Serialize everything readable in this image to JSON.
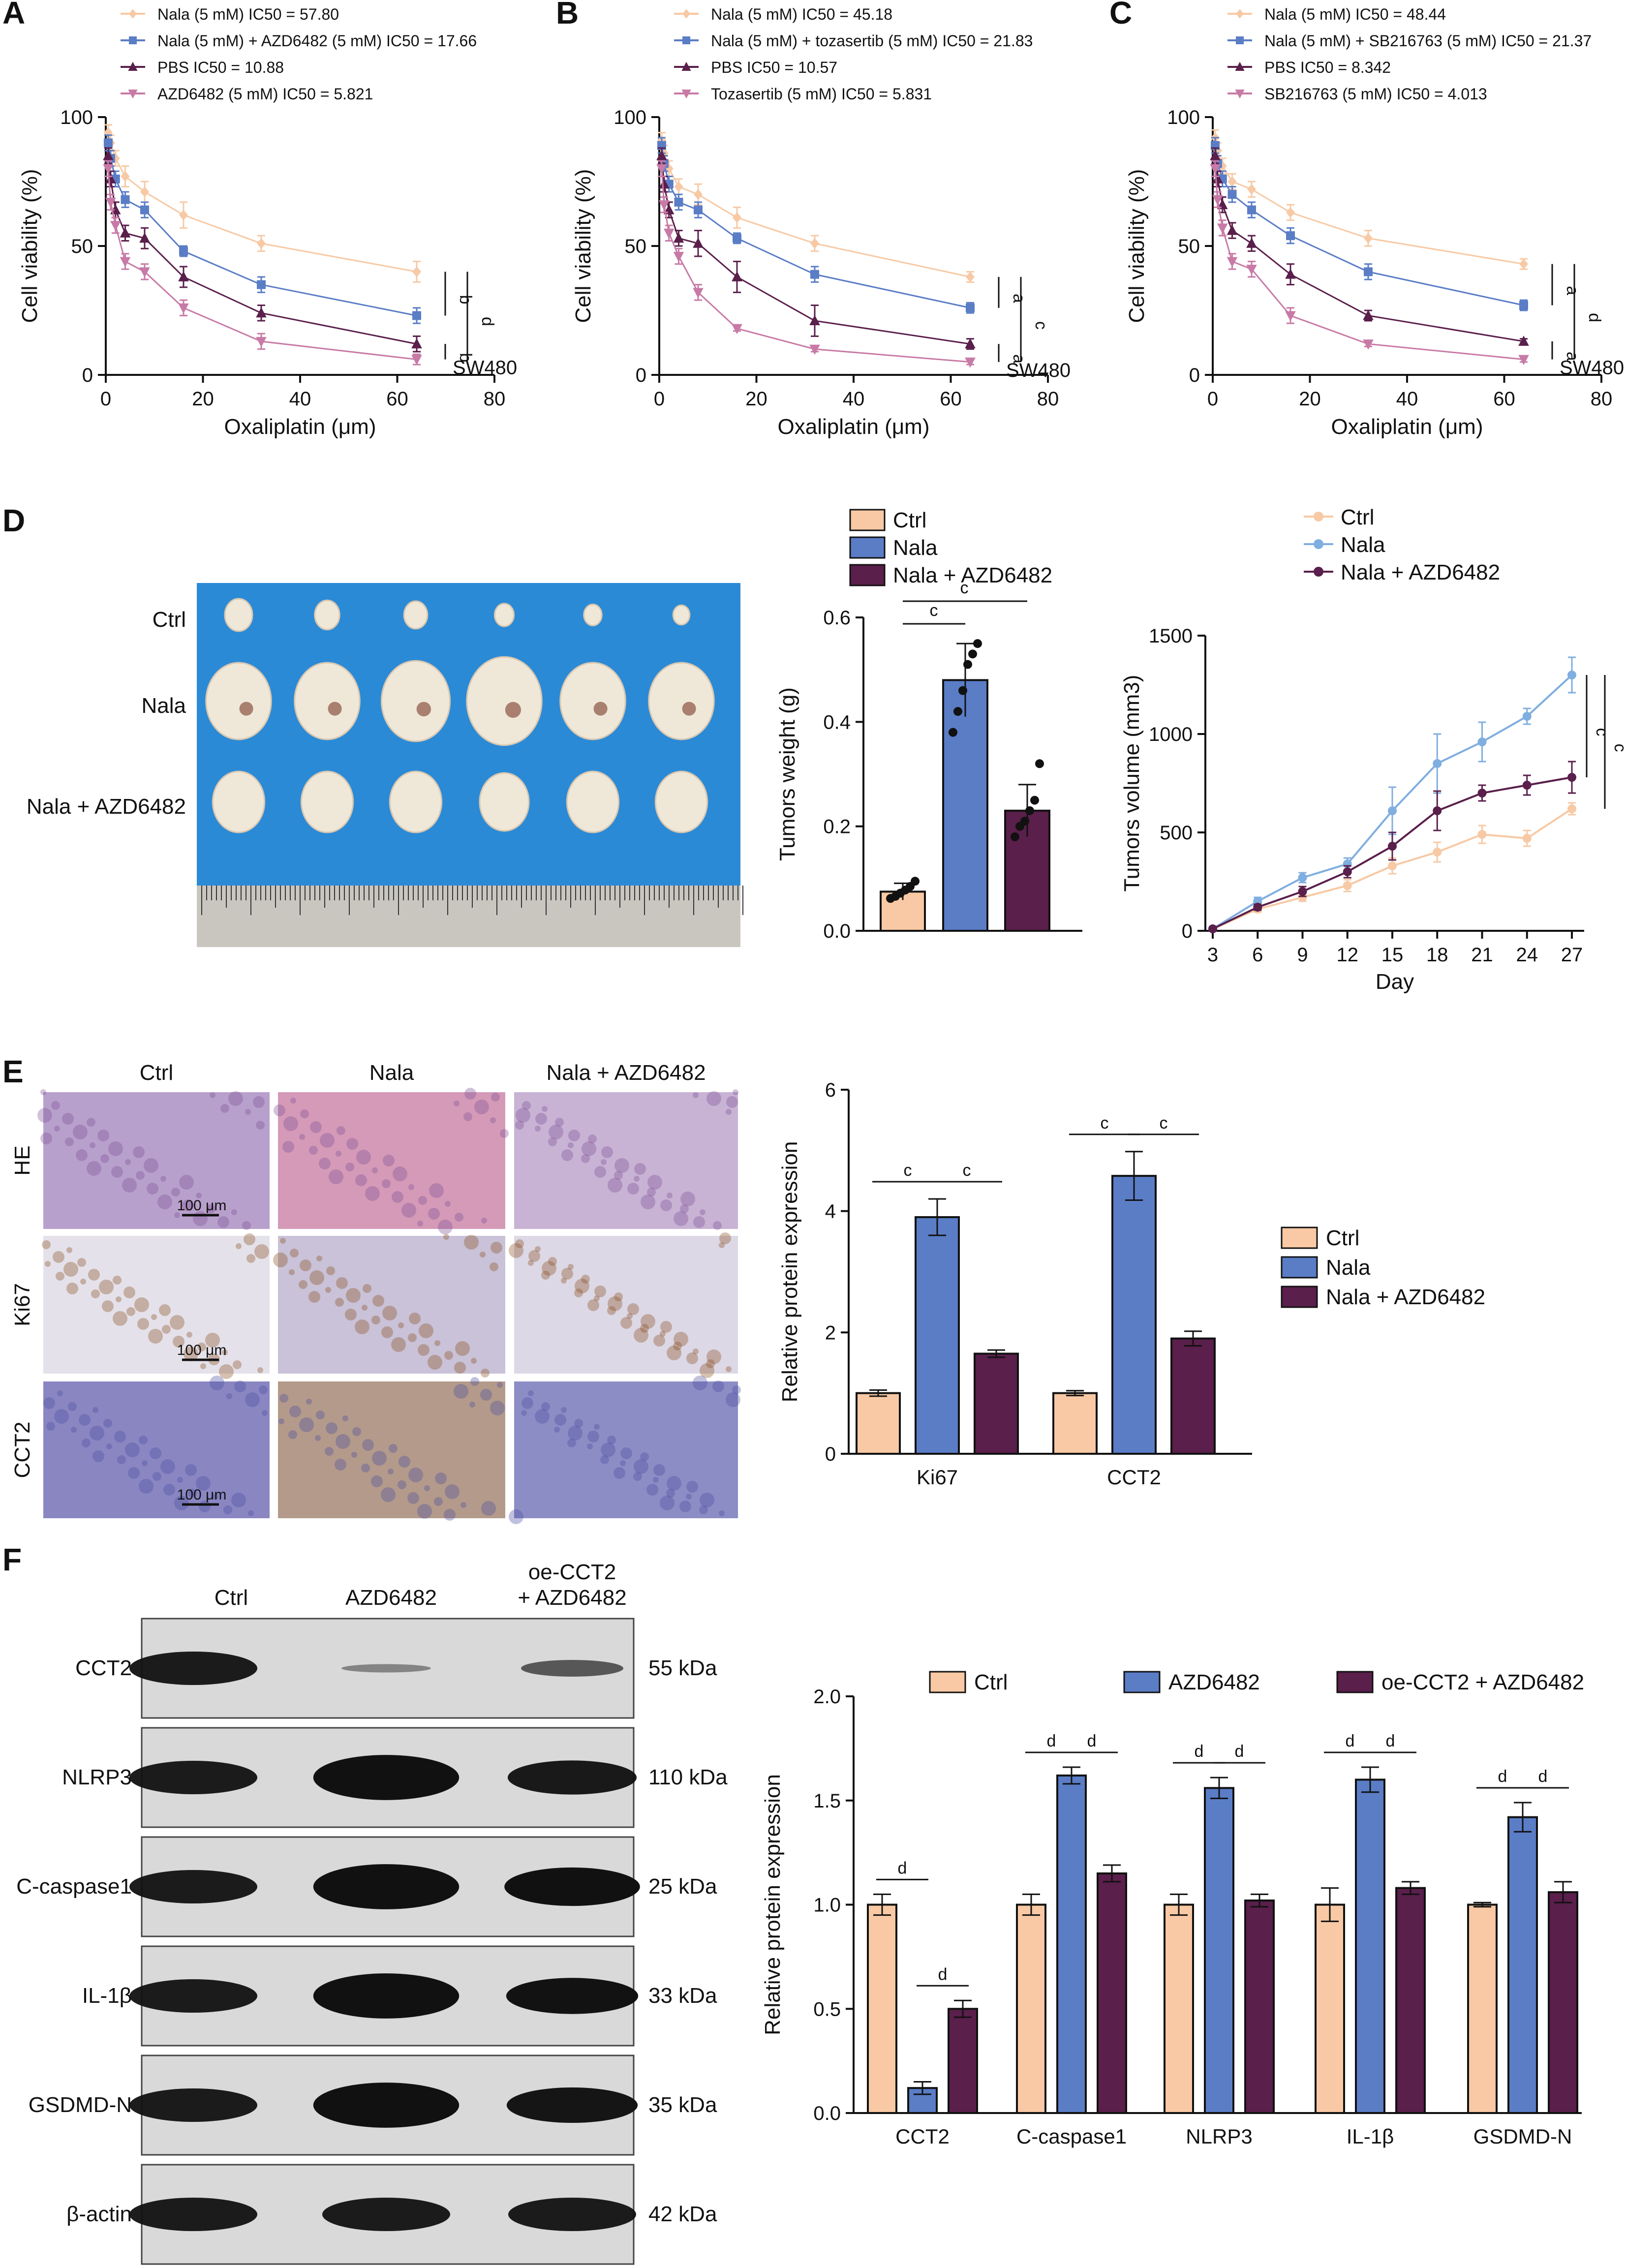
{
  "colors": {
    "orange": "#f3a673",
    "light_orange": "#f7c9a4",
    "ctrl_fill": "#f8c9a4",
    "blue": "#4b77c4",
    "nala_fill": "#5a7dc6",
    "light_blue": "#7faee0",
    "purple": "#5a1f4b",
    "pink": "#c87aa6",
    "tissue_blue": "#2b8ad6"
  },
  "panels": {
    "A": {
      "letter": "A",
      "cell_line": "SW480"
    },
    "B": {
      "letter": "B",
      "cell_line": "SW480"
    },
    "C": {
      "letter": "C",
      "cell_line": "SW480"
    },
    "D": {
      "letter": "D",
      "photo_labels": [
        "Ctrl",
        "Nala",
        "Nala + AZD6482"
      ]
    },
    "E": {
      "letter": "E",
      "columns": [
        "Ctrl",
        "Nala",
        "Nala + AZD6482"
      ],
      "rows": [
        "HE",
        "Ki67",
        "CCT2"
      ],
      "scale_bar": "100 μm"
    },
    "F": {
      "letter": "F",
      "columns": [
        "Ctrl",
        "AZD6482",
        "oe-CCT2",
        "+ AZD6482"
      ],
      "blots": [
        {
          "name": "CCT2",
          "size": "55 kDa",
          "intensity": [
            1.0,
            0.12,
            0.5
          ]
        },
        {
          "name": "NLRP3",
          "size": "110 kDa",
          "intensity": [
            1.0,
            1.56,
            1.02
          ]
        },
        {
          "name": "C-caspase1",
          "size": "25 kDa",
          "intensity": [
            1.0,
            1.62,
            1.15
          ]
        },
        {
          "name": "IL-1β",
          "size": "33 kDa",
          "intensity": [
            1.0,
            1.6,
            1.08
          ]
        },
        {
          "name": "GSDMD-N",
          "size": "35 kDa",
          "intensity": [
            1.0,
            1.42,
            1.06
          ]
        },
        {
          "name": "β-actin",
          "size": "42 kDa",
          "intensity": [
            1.0,
            1.0,
            1.0
          ]
        }
      ]
    }
  },
  "chart_data": [
    {
      "panel": "A",
      "type": "line",
      "xlabel": "Oxaliplatin (μm)",
      "ylabel": "Cell viability (%)",
      "xlim": [
        0,
        80
      ],
      "ylim": [
        0,
        100
      ],
      "xticks": [
        0,
        20,
        40,
        60,
        80
      ],
      "yticks": [
        0,
        50,
        100
      ],
      "x": [
        0.5,
        1,
        2,
        4,
        8,
        16,
        32,
        64
      ],
      "series": [
        {
          "name": "Nala (5 mM) IC50 = 57.80",
          "color": "#f7c9a4",
          "marker": "diamond",
          "values": [
            94,
            90,
            84,
            77,
            71,
            62,
            51,
            40
          ],
          "err": [
            3,
            3,
            3,
            4,
            4,
            5,
            3,
            4
          ]
        },
        {
          "name": "Nala (5 mM) + AZD6482 (5 mM) IC50 = 17.66",
          "color": "#5a7dc6",
          "marker": "square",
          "values": [
            90,
            84,
            76,
            68,
            64,
            48,
            35,
            23
          ],
          "err": [
            3,
            3,
            3,
            3,
            3,
            2,
            3,
            3
          ]
        },
        {
          "name": "PBS IC50 = 10.88",
          "color": "#5a1f4b",
          "marker": "triangle",
          "values": [
            85,
            76,
            64,
            55,
            53,
            38,
            24,
            12
          ],
          "err": [
            3,
            3,
            3,
            3,
            4,
            4,
            3,
            3
          ]
        },
        {
          "name": "AZD6482 (5 mM) IC50 = 5.821",
          "color": "#c87aa6",
          "marker": "triangle-down",
          "values": [
            80,
            67,
            58,
            44,
            40,
            26,
            13,
            6
          ],
          "err": [
            3,
            3,
            3,
            3,
            3,
            3,
            3,
            2
          ]
        }
      ],
      "sig": [
        {
          "label": "b",
          "from": 0,
          "to": 1
        },
        {
          "label": "b",
          "from": 2,
          "to": 3
        },
        {
          "label": "d",
          "from": 0,
          "to": 3
        }
      ]
    },
    {
      "panel": "B",
      "type": "line",
      "xlabel": "Oxaliplatin (μm)",
      "ylabel": "Cell viability (%)",
      "xlim": [
        0,
        80
      ],
      "ylim": [
        0,
        100
      ],
      "xticks": [
        0,
        20,
        40,
        60,
        80
      ],
      "yticks": [
        0,
        50,
        100
      ],
      "x": [
        0.5,
        1,
        2,
        4,
        8,
        16,
        32,
        64
      ],
      "series": [
        {
          "name": "Nala (5 mM) IC50 = 45.18",
          "color": "#f7c9a4",
          "marker": "diamond",
          "values": [
            91,
            86,
            80,
            73,
            70,
            61,
            51,
            38
          ],
          "err": [
            3,
            3,
            3,
            3,
            4,
            4,
            3,
            2
          ]
        },
        {
          "name": "Nala (5 mM) + tozasertib (5 mM) IC50 = 21.83",
          "color": "#5a7dc6",
          "marker": "square",
          "values": [
            89,
            82,
            74,
            67,
            64,
            53,
            39,
            26
          ],
          "err": [
            3,
            3,
            3,
            3,
            3,
            2,
            3,
            2
          ]
        },
        {
          "name": "PBS IC50 = 10.57",
          "color": "#5a1f4b",
          "marker": "triangle",
          "values": [
            85,
            74,
            64,
            53,
            51,
            38,
            21,
            12
          ],
          "err": [
            3,
            3,
            3,
            3,
            5,
            6,
            6,
            2
          ]
        },
        {
          "name": "Tozasertib (5 mM) IC50 = 5.831",
          "color": "#c87aa6",
          "marker": "triangle-down",
          "values": [
            80,
            66,
            55,
            46,
            32,
            18,
            10,
            5
          ],
          "err": [
            3,
            3,
            3,
            3,
            3,
            1,
            1,
            1
          ]
        }
      ],
      "sig": [
        {
          "label": "a",
          "from": 0,
          "to": 1
        },
        {
          "label": "a",
          "from": 2,
          "to": 3
        },
        {
          "label": "c",
          "from": 0,
          "to": 3
        }
      ]
    },
    {
      "panel": "C",
      "type": "line",
      "xlabel": "Oxaliplatin (μm)",
      "ylabel": "Cell viability (%)",
      "xlim": [
        0,
        80
      ],
      "ylim": [
        0,
        100
      ],
      "xticks": [
        0,
        20,
        40,
        60,
        80
      ],
      "yticks": [
        0,
        50,
        100
      ],
      "x": [
        0.5,
        1,
        2,
        4,
        8,
        16,
        32,
        64
      ],
      "series": [
        {
          "name": "Nala (5 mM) IC50 = 48.44",
          "color": "#f7c9a4",
          "marker": "diamond",
          "values": [
            92,
            87,
            81,
            75,
            72,
            63,
            53,
            43
          ],
          "err": [
            3,
            3,
            3,
            3,
            3,
            3,
            3,
            2
          ]
        },
        {
          "name": "Nala (5 mM) + SB216763 (5 mM) IC50 = 21.37",
          "color": "#5a7dc6",
          "marker": "square",
          "values": [
            89,
            82,
            76,
            70,
            64,
            54,
            40,
            27
          ],
          "err": [
            3,
            3,
            3,
            3,
            3,
            3,
            3,
            2
          ]
        },
        {
          "name": "PBS IC50 = 8.342",
          "color": "#5a1f4b",
          "marker": "triangle",
          "values": [
            85,
            76,
            66,
            56,
            51,
            39,
            23,
            13
          ],
          "err": [
            3,
            3,
            3,
            3,
            3,
            4,
            2,
            1
          ]
        },
        {
          "name": "SB216763 (5 mM) IC50 = 4.013",
          "color": "#c87aa6",
          "marker": "triangle-down",
          "values": [
            80,
            68,
            57,
            44,
            41,
            23,
            12,
            6
          ],
          "err": [
            3,
            3,
            3,
            3,
            3,
            3,
            1,
            1
          ]
        }
      ],
      "sig": [
        {
          "label": "a",
          "from": 0,
          "to": 1
        },
        {
          "label": "a",
          "from": 2,
          "to": 3
        },
        {
          "label": "d",
          "from": 0,
          "to": 3
        }
      ]
    },
    {
      "panel": "D-weight",
      "type": "bar",
      "ylabel": "Tumors weight (g)",
      "ylim": [
        0,
        0.6
      ],
      "yticks": [
        "0.0",
        "0.2",
        "0.4",
        "0.6"
      ],
      "categories": [
        "Ctrl",
        "Nala",
        "Nala + AZD6482"
      ],
      "values": [
        0.075,
        0.48,
        0.23
      ],
      "err": [
        0.016,
        0.07,
        0.05
      ],
      "points": [
        [
          0.062,
          0.066,
          0.072,
          0.078,
          0.085,
          0.095
        ],
        [
          0.38,
          0.42,
          0.46,
          0.51,
          0.53,
          0.55
        ],
        [
          0.18,
          0.2,
          0.21,
          0.23,
          0.25,
          0.32
        ]
      ],
      "sig": [
        {
          "label": "c",
          "from": 0,
          "to": 1
        },
        {
          "label": "c",
          "from": 0,
          "to": 2
        }
      ],
      "legend": [
        "Ctrl",
        "Nala",
        "Nala + AZD6482"
      ]
    },
    {
      "panel": "D-volume",
      "type": "line",
      "xlabel": "Day",
      "ylabel": "Tumors volume (mm3)",
      "x": [
        3,
        6,
        9,
        12,
        15,
        18,
        21,
        24,
        27
      ],
      "ylim": [
        0,
        1500
      ],
      "yticks": [
        0,
        500,
        1000,
        1500
      ],
      "series": [
        {
          "name": "Ctrl",
          "color": "#f7c9a4",
          "values": [
            10,
            110,
            170,
            230,
            330,
            400,
            490,
            470,
            620
          ],
          "err": [
            10,
            15,
            20,
            30,
            40,
            50,
            45,
            40,
            30
          ]
        },
        {
          "name": "Nala",
          "color": "#7faee0",
          "values": [
            10,
            150,
            270,
            340,
            610,
            850,
            960,
            1090,
            1300
          ],
          "err": [
            10,
            20,
            25,
            30,
            120,
            150,
            100,
            40,
            90
          ]
        },
        {
          "name": "Nala + AZD6482",
          "color": "#5a1f4b",
          "values": [
            10,
            120,
            200,
            300,
            430,
            610,
            700,
            740,
            780
          ],
          "err": [
            10,
            15,
            25,
            30,
            70,
            100,
            40,
            50,
            80
          ]
        }
      ],
      "sig": [
        {
          "label": "c",
          "from": 1,
          "to": 2
        },
        {
          "label": "c",
          "from": 1,
          "to": 0
        }
      ]
    },
    {
      "panel": "E",
      "type": "bar",
      "ylabel": "Relative protein expression",
      "ylim": [
        0,
        6
      ],
      "yticks": [
        0,
        2,
        4,
        6
      ],
      "categories": [
        "Ki67",
        "CCT2"
      ],
      "series": [
        {
          "name": "Ctrl",
          "color": "#f8c9a4",
          "values": [
            1.0,
            1.0
          ],
          "err": [
            0.05,
            0.04
          ]
        },
        {
          "name": "Nala",
          "color": "#5a7dc6",
          "values": [
            3.9,
            4.58
          ],
          "err": [
            0.3,
            0.4
          ]
        },
        {
          "name": "Nala + AZD6482",
          "color": "#5a1f4b",
          "values": [
            1.65,
            1.9
          ],
          "err": [
            0.06,
            0.12
          ]
        }
      ],
      "sig_label": "c"
    },
    {
      "panel": "F",
      "type": "bar",
      "ylabel": "Relative protein expression",
      "ylim": [
        0,
        2.0
      ],
      "yticks": [
        "0.0",
        "0.5",
        "1.0",
        "1.5",
        "2.0"
      ],
      "categories": [
        "CCT2",
        "C-caspase1",
        "NLRP3",
        "IL-1β",
        "GSDMD-N"
      ],
      "series": [
        {
          "name": "Ctrl",
          "color": "#f8c9a4",
          "values": [
            1.0,
            1.0,
            1.0,
            1.0,
            1.0
          ],
          "err": [
            0.05,
            0.05,
            0.05,
            0.08,
            0.01
          ]
        },
        {
          "name": "AZD6482",
          "color": "#5a7dc6",
          "values": [
            0.12,
            1.62,
            1.56,
            1.6,
            1.42
          ],
          "err": [
            0.03,
            0.04,
            0.05,
            0.06,
            0.07
          ]
        },
        {
          "name": "oe-CCT2 + AZD6482",
          "color": "#5a1f4b",
          "values": [
            0.5,
            1.15,
            1.02,
            1.08,
            1.06
          ],
          "err": [
            0.04,
            0.04,
            0.03,
            0.03,
            0.05
          ]
        }
      ],
      "sig_label": "d"
    }
  ]
}
